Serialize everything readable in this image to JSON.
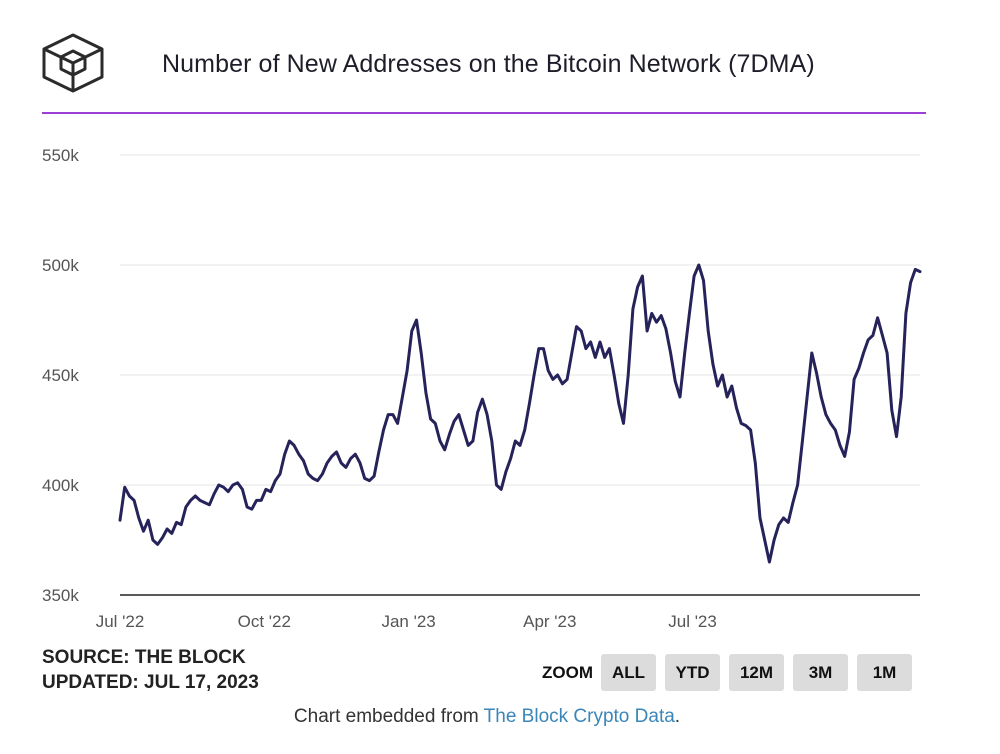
{
  "header": {
    "title": "Number of New Addresses on the Bitcoin Network (7DMA)",
    "logo_name": "the-block-cube-logo"
  },
  "colors": {
    "accent_rule": "#9b3fd6",
    "series_line": "#26235a",
    "grid": "#e6e6e6",
    "axis": "#222222",
    "button_bg": "#dcdcdc",
    "link": "#3a86b8"
  },
  "chart_data": {
    "type": "line",
    "title": "Number of New Addresses on the Bitcoin Network (7DMA)",
    "xlabel": "",
    "ylabel": "",
    "ylim": [
      350000,
      550000
    ],
    "grid": true,
    "x_ticks": [
      "Jul '22",
      "Oct '22",
      "Jan '23",
      "Apr '23",
      "Jul '23"
    ],
    "y_ticks": [
      {
        "value": 350000,
        "label": "350k"
      },
      {
        "value": 400000,
        "label": "400k"
      },
      {
        "value": 450000,
        "label": "450k"
      },
      {
        "value": 500000,
        "label": "500k"
      },
      {
        "value": 550000,
        "label": "550k"
      }
    ],
    "series": [
      {
        "name": "New Addresses (7DMA)",
        "x_start": "2022-07-01",
        "step_days": 3,
        "values": [
          384000,
          399000,
          395000,
          393000,
          385000,
          379000,
          384000,
          375000,
          373000,
          376000,
          380000,
          378000,
          383000,
          382000,
          390000,
          393000,
          395000,
          393000,
          392000,
          391000,
          396000,
          400000,
          399000,
          397000,
          400000,
          401000,
          398000,
          390000,
          389000,
          393000,
          393000,
          398000,
          397000,
          402000,
          405000,
          414000,
          420000,
          418000,
          414000,
          411000,
          405000,
          403000,
          402000,
          405000,
          410000,
          413000,
          415000,
          410000,
          408000,
          412000,
          414000,
          410000,
          403000,
          402000,
          404000,
          415000,
          425000,
          432000,
          432000,
          428000,
          440000,
          452000,
          470000,
          475000,
          460000,
          442000,
          430000,
          428000,
          420000,
          416000,
          423000,
          429000,
          432000,
          425000,
          418000,
          420000,
          433000,
          439000,
          432000,
          420000,
          400000,
          398000,
          406000,
          412000,
          420000,
          418000,
          425000,
          437000,
          450000,
          462000,
          462000,
          452000,
          448000,
          450000,
          446000,
          448000,
          460000,
          472000,
          470000,
          462000,
          465000,
          458000,
          465000,
          458000,
          462000,
          450000,
          437000,
          428000,
          450000,
          480000,
          490000,
          495000,
          470000,
          478000,
          474000,
          477000,
          471000,
          460000,
          447000,
          440000,
          460000,
          478000,
          495000,
          500000,
          493000,
          470000,
          455000,
          445000,
          450000,
          440000,
          445000,
          435000,
          428000,
          427000,
          425000,
          410000,
          385000,
          375000,
          365000,
          375000,
          382000,
          385000,
          383000,
          392000,
          400000,
          420000,
          440000,
          460000,
          451000,
          440000,
          432000,
          428000,
          425000,
          418000,
          413000,
          424000,
          448000,
          453000,
          460000,
          466000,
          468000,
          476000,
          468000,
          460000,
          434000,
          422000,
          440000,
          478000,
          492000,
          498000,
          497000
        ]
      }
    ]
  },
  "source": {
    "line1": "SOURCE: THE BLOCK",
    "line2": "UPDATED: JUL 17, 2023"
  },
  "zoom": {
    "label": "ZOOM",
    "buttons": [
      "ALL",
      "YTD",
      "12M",
      "3M",
      "1M"
    ]
  },
  "footer": {
    "prefix": "Chart embedded from ",
    "link_text": "The Block Crypto Data",
    "suffix": "."
  }
}
